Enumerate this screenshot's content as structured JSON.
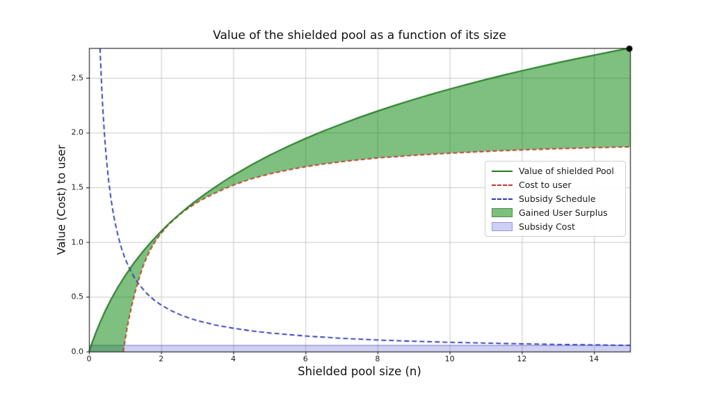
{
  "chart_data": {
    "type": "line",
    "title": "Value of the shielded pool as a function of its size",
    "xlabel": "Shielded pool size (n)",
    "ylabel": "Value (Cost) to user",
    "xlim": [
      0,
      15
    ],
    "ylim": [
      0,
      2.7726
    ],
    "grid": true,
    "x_tick_labels": [
      "0",
      "2",
      "4",
      "6",
      "8",
      "10",
      "12",
      "14"
    ],
    "y_tick_labels": [
      "0.0",
      "0.5",
      "1.0",
      "1.5",
      "2.0",
      "2.5"
    ],
    "colors": {
      "value_line": "#1f7d1f",
      "cost_line": "#c2362b",
      "subsidy_line": "#2a35b5",
      "surplus_fill": "rgba(0,128,0,0.5)",
      "subsidy_fill": "rgba(40,40,200,0.22)",
      "subsidy_fill_edge": "rgba(80,80,190,0.6)",
      "grid": "#c8c8c8",
      "spine": "#2a2a2a",
      "endpoint": "#000000"
    },
    "series": [
      {
        "name": "Value of shielded Pool",
        "style": "solid",
        "width": 2,
        "points": [
          [
            0,
            0
          ],
          [
            0.1,
            0.095
          ],
          [
            0.2,
            0.182
          ],
          [
            0.3,
            0.262
          ],
          [
            0.45,
            0.372
          ],
          [
            0.6,
            0.47
          ],
          [
            0.8,
            0.588
          ],
          [
            1,
            0.693
          ],
          [
            1.25,
            0.811
          ],
          [
            1.5,
            0.916
          ],
          [
            1.75,
            1.012
          ],
          [
            2,
            1.099
          ],
          [
            2.25,
            1.179
          ],
          [
            2.5,
            1.253
          ],
          [
            2.75,
            1.322
          ],
          [
            3,
            1.386
          ],
          [
            3.25,
            1.447
          ],
          [
            3.5,
            1.504
          ],
          [
            3.75,
            1.558
          ],
          [
            4,
            1.609
          ],
          [
            4.5,
            1.705
          ],
          [
            5,
            1.792
          ],
          [
            5.5,
            1.872
          ],
          [
            6,
            1.946
          ],
          [
            6.5,
            2.015
          ],
          [
            7,
            2.079
          ],
          [
            7.5,
            2.14
          ],
          [
            8,
            2.197
          ],
          [
            8.5,
            2.251
          ],
          [
            9,
            2.303
          ],
          [
            9.5,
            2.351
          ],
          [
            10,
            2.398
          ],
          [
            10.5,
            2.442
          ],
          [
            11,
            2.485
          ],
          [
            11.5,
            2.526
          ],
          [
            12,
            2.565
          ],
          [
            12.5,
            2.603
          ],
          [
            13,
            2.639
          ],
          [
            13.5,
            2.674
          ],
          [
            14,
            2.708
          ],
          [
            14.5,
            2.741
          ],
          [
            15,
            2.773
          ]
        ]
      },
      {
        "name": "Cost to user",
        "style": "dashed",
        "dash": [
          6,
          3.5
        ],
        "width": 1.8,
        "points": [
          [
            0.95,
            0
          ],
          [
            1.0,
            0.1
          ],
          [
            1.05,
            0.2
          ],
          [
            1.1,
            0.29
          ],
          [
            1.2,
            0.44
          ],
          [
            1.3,
            0.57
          ],
          [
            1.4,
            0.68
          ],
          [
            1.5,
            0.78
          ],
          [
            1.6,
            0.86
          ],
          [
            1.7,
            0.93
          ],
          [
            1.85,
            1.015
          ],
          [
            2,
            1.08
          ],
          [
            2.2,
            1.157
          ],
          [
            2.4,
            1.217
          ],
          [
            2.6,
            1.274
          ],
          [
            2.8,
            1.32
          ],
          [
            3,
            1.362
          ],
          [
            3.25,
            1.408
          ],
          [
            3.5,
            1.448
          ],
          [
            3.75,
            1.486
          ],
          [
            4,
            1.52
          ],
          [
            4.5,
            1.578
          ],
          [
            5,
            1.622
          ],
          [
            5.5,
            1.658
          ],
          [
            6,
            1.688
          ],
          [
            6.5,
            1.713
          ],
          [
            7,
            1.734
          ],
          [
            7.5,
            1.752
          ],
          [
            8,
            1.768
          ],
          [
            9,
            1.792
          ],
          [
            10,
            1.812
          ],
          [
            11,
            1.828
          ],
          [
            12,
            1.842
          ],
          [
            13,
            1.853
          ],
          [
            14,
            1.862
          ],
          [
            15,
            1.87
          ]
        ]
      },
      {
        "name": "Subsidy Schedule",
        "style": "dashed",
        "dash": [
          7,
          4
        ],
        "width": 1.8,
        "points": [
          [
            0.306,
            2.773
          ],
          [
            0.32,
            2.656
          ],
          [
            0.34,
            2.5
          ],
          [
            0.36,
            2.361
          ],
          [
            0.38,
            2.237
          ],
          [
            0.4,
            2.125
          ],
          [
            0.43,
            1.977
          ],
          [
            0.46,
            1.848
          ],
          [
            0.5,
            1.7
          ],
          [
            0.55,
            1.545
          ],
          [
            0.6,
            1.417
          ],
          [
            0.65,
            1.308
          ],
          [
            0.7,
            1.214
          ],
          [
            0.8,
            1.063
          ],
          [
            0.9,
            0.944
          ],
          [
            1,
            0.85
          ],
          [
            1.1,
            0.773
          ],
          [
            1.25,
            0.68
          ],
          [
            1.4,
            0.607
          ],
          [
            1.6,
            0.531
          ],
          [
            1.8,
            0.472
          ],
          [
            2,
            0.425
          ],
          [
            2.25,
            0.378
          ],
          [
            2.5,
            0.34
          ],
          [
            2.75,
            0.309
          ],
          [
            3,
            0.283
          ],
          [
            3.5,
            0.243
          ],
          [
            4,
            0.213
          ],
          [
            4.5,
            0.189
          ],
          [
            5,
            0.17
          ],
          [
            6,
            0.142
          ],
          [
            7,
            0.121
          ],
          [
            8,
            0.106
          ],
          [
            9,
            0.094
          ],
          [
            10,
            0.085
          ],
          [
            11,
            0.077
          ],
          [
            12,
            0.071
          ],
          [
            13,
            0.065
          ],
          [
            14,
            0.061
          ],
          [
            15,
            0.057
          ]
        ]
      }
    ],
    "fills": [
      {
        "name": "Gained User Surplus",
        "between": [
          "Value of shielded Pool",
          "Cost to user"
        ],
        "lower_clip": 0
      },
      {
        "name": "Subsidy Cost",
        "band": [
          0,
          0.057
        ]
      }
    ],
    "endpoint_marker": {
      "x": 15,
      "y": 2.773,
      "radius": 4.5
    },
    "legend": {
      "items": [
        {
          "label": "Value of shielded Pool",
          "swatch": "line",
          "color": "#1f7d1f"
        },
        {
          "label": "Cost to user",
          "swatch": "dash",
          "color": "#c2362b"
        },
        {
          "label": "Subsidy Schedule",
          "swatch": "dash",
          "color": "#2a35b5"
        },
        {
          "label": "Gained User Surplus",
          "swatch": "patch",
          "color": "#7dbf7d",
          "edge": "#4d8b4d"
        },
        {
          "label": "Subsidy Cost",
          "swatch": "patch",
          "color": "#cfcff5",
          "edge": "#9a9ad0"
        }
      ]
    }
  }
}
